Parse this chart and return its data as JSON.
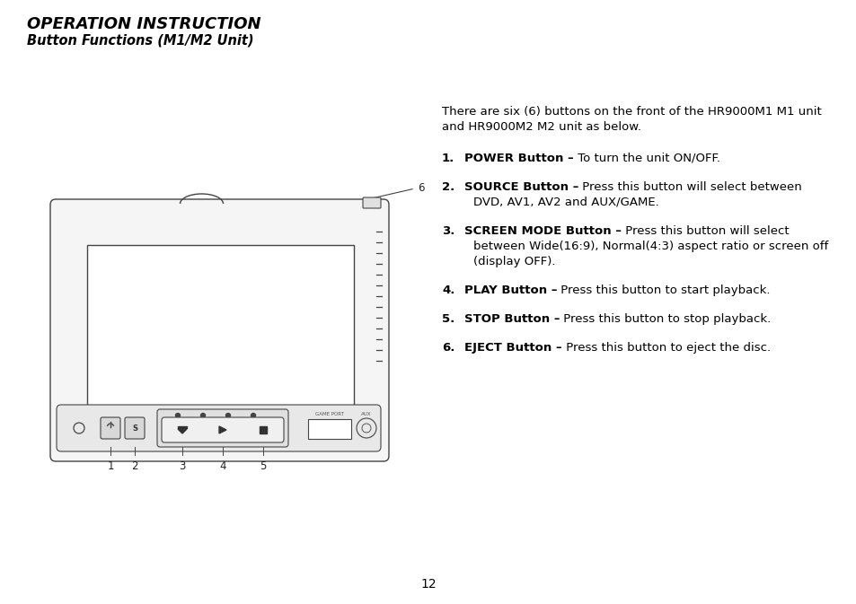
{
  "title": "OPERATION INSTRUCTION",
  "subtitle": "Button Functions (M1/M2 Unit)",
  "bg_color": "#ffffff",
  "text_color": "#000000",
  "page_number": "12",
  "intro_line1": "There are six (6) buttons on the front of the HR9000M1 M1 unit",
  "intro_line2": "and HR9000M2 M2 unit as below.",
  "items": [
    {
      "num": "1.",
      "bold": "POWER Button –",
      "normal": " To turn the unit ON/OFF.",
      "extra": []
    },
    {
      "num": "2.",
      "bold": "SOURCE Button –",
      "normal": " Press this button will select between",
      "extra": [
        "DVD, AV1, AV2 and AUX/GAME."
      ]
    },
    {
      "num": "3.",
      "bold": "SCREEN MODE Button –",
      "normal": " Press this button will select",
      "extra": [
        "between Wide(16:9), Normal(4:3) aspect ratio or screen off",
        "(display OFF)."
      ]
    },
    {
      "num": "4.",
      "bold": "PLAY Button –",
      "normal": " Press this button to start playback.",
      "extra": []
    },
    {
      "num": "5.",
      "bold": "STOP Button –",
      "normal": " Press this button to stop playback.",
      "extra": []
    },
    {
      "num": "6.",
      "bold": "EJECT Button –",
      "normal": " Press this button to eject the disc.",
      "extra": []
    }
  ]
}
